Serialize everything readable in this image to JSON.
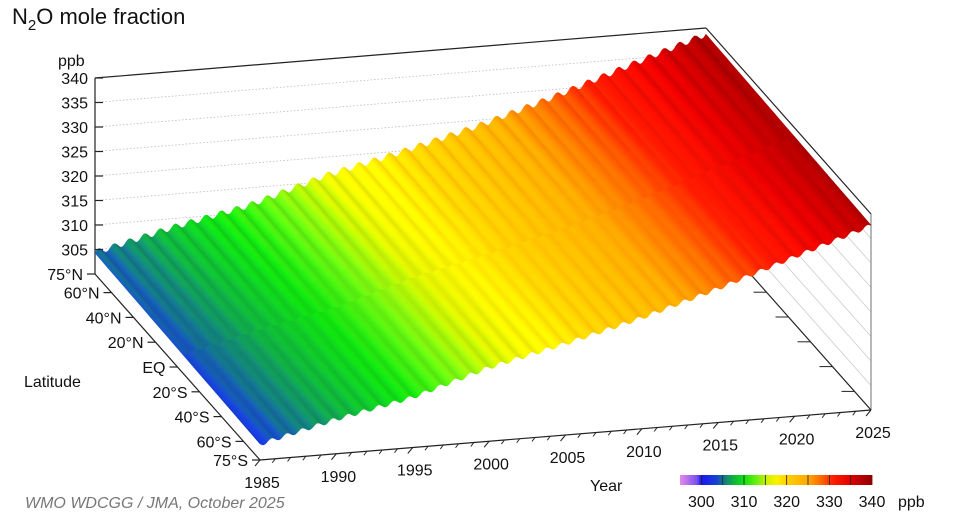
{
  "chart_data": {
    "type": "surface",
    "title": "N2O mole fraction",
    "title_parts": {
      "base": "N",
      "sub": "2",
      "rest": "O mole fraction"
    },
    "zlabel": "ppb",
    "ylabel": "Latitude",
    "xlabel": "Year",
    "credit": "WMO WDCGG / JMA, October 2025",
    "z_ticks": [
      "305",
      "310",
      "315",
      "320",
      "325",
      "330",
      "335",
      "340"
    ],
    "z_range": [
      300,
      340
    ],
    "x_range": [
      1985,
      2025
    ],
    "x_ticks": [
      "1985",
      "1990",
      "1995",
      "2000",
      "2005",
      "2010",
      "2015",
      "2020",
      "2025"
    ],
    "lat_ticks": [
      {
        "label": "75°N",
        "value": 75
      },
      {
        "label": "60°N",
        "value": 60
      },
      {
        "label": "40°N",
        "value": 40
      },
      {
        "label": "20°N",
        "value": 20
      },
      {
        "label": "EQ",
        "value": 0
      },
      {
        "label": "20°S",
        "value": -20
      },
      {
        "label": "40°S",
        "value": -40
      },
      {
        "label": "60°S",
        "value": -60
      },
      {
        "label": "75°S",
        "value": -75
      }
    ],
    "annual_mean_ppb": {
      "years": [
        1985,
        1990,
        1995,
        2000,
        2005,
        2010,
        2015,
        2020,
        2025
      ],
      "values": [
        303.8,
        307.6,
        310.8,
        315.6,
        319.2,
        323.2,
        327.9,
        333.1,
        338.2
      ]
    },
    "north_minus_south_ppb": 1.0,
    "seasonal_amplitude_ppb": 0.6,
    "colorbar": {
      "range": [
        295,
        340
      ],
      "tick_labels": [
        "300",
        "310",
        "320",
        "330",
        "340"
      ],
      "unit": "ppb",
      "stops": [
        {
          "v": 295,
          "c": "#e88ae8"
        },
        {
          "v": 299,
          "c": "#7a50f0"
        },
        {
          "v": 300,
          "c": "#1818f0"
        },
        {
          "v": 303.5,
          "c": "#1840d8"
        },
        {
          "v": 305,
          "c": "#147090"
        },
        {
          "v": 307.5,
          "c": "#10b040"
        },
        {
          "v": 310,
          "c": "#10e010"
        },
        {
          "v": 313,
          "c": "#70f010"
        },
        {
          "v": 316,
          "c": "#e0f000"
        },
        {
          "v": 318,
          "c": "#fff000"
        },
        {
          "v": 320,
          "c": "#ffd000"
        },
        {
          "v": 325,
          "c": "#ffa800"
        },
        {
          "v": 328,
          "c": "#ff6a00"
        },
        {
          "v": 331,
          "c": "#ff1a00"
        },
        {
          "v": 335,
          "c": "#e00000"
        },
        {
          "v": 340,
          "c": "#8c0000"
        }
      ]
    }
  }
}
